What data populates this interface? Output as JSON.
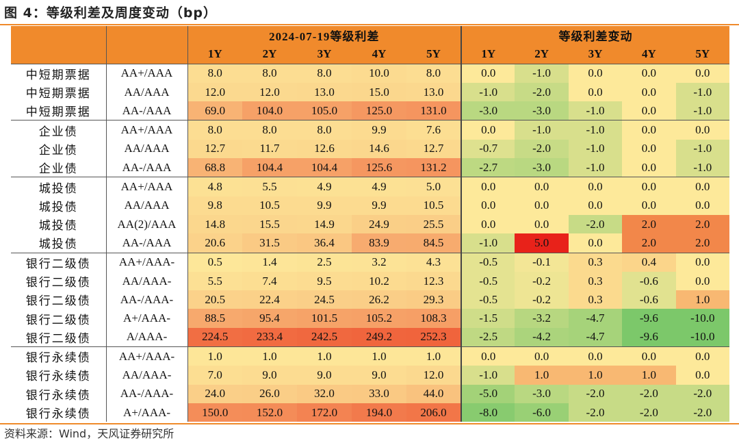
{
  "title": "图 4：等级利差及周度变动（bp）",
  "source": "资料来源：Wind，天风证券研究所",
  "header": {
    "group_left": "2024-07-19等级利差",
    "group_right": "等级利差变动",
    "tenors": [
      "1Y",
      "2Y",
      "3Y",
      "4Y",
      "5Y"
    ]
  },
  "rows": [
    {
      "name": "中短期票据",
      "rating": "AA+/AAA",
      "spread": [
        "8.0",
        "8.0",
        "8.0",
        "10.0",
        "8.0"
      ],
      "change": [
        "0.0",
        "-1.0",
        "0.0",
        "0.0",
        "0.0"
      ]
    },
    {
      "name": "中短期票据",
      "rating": "AA/AAA",
      "spread": [
        "12.0",
        "12.0",
        "13.0",
        "15.0",
        "13.0"
      ],
      "change": [
        "-1.0",
        "-2.0",
        "0.0",
        "0.0",
        "-1.0"
      ]
    },
    {
      "name": "中短期票据",
      "rating": "AA-/AAA",
      "spread": [
        "69.0",
        "104.0",
        "105.0",
        "125.0",
        "131.0"
      ],
      "change": [
        "-3.0",
        "-3.0",
        "-1.0",
        "0.0",
        "-1.0"
      ]
    },
    {
      "name": "企业债",
      "rating": "AA+/AAA",
      "spread": [
        "8.0",
        "8.0",
        "8.0",
        "9.9",
        "7.6"
      ],
      "change": [
        "0.0",
        "-1.0",
        "-1.0",
        "0.0",
        "0.0"
      ]
    },
    {
      "name": "企业债",
      "rating": "AA/AAA",
      "spread": [
        "12.7",
        "11.7",
        "12.6",
        "14.6",
        "12.7"
      ],
      "change": [
        "-0.7",
        "-2.0",
        "-1.0",
        "0.0",
        "-1.0"
      ]
    },
    {
      "name": "企业债",
      "rating": "AA-/AAA",
      "spread": [
        "68.8",
        "104.4",
        "104.4",
        "125.6",
        "131.2"
      ],
      "change": [
        "-2.7",
        "-3.0",
        "-1.0",
        "0.0",
        "-1.0"
      ]
    },
    {
      "name": "城投债",
      "rating": "AA+/AAA",
      "spread": [
        "4.8",
        "5.5",
        "4.9",
        "4.9",
        "5.0"
      ],
      "change": [
        "0.0",
        "0.0",
        "0.0",
        "0.0",
        "0.0"
      ]
    },
    {
      "name": "城投债",
      "rating": "AA/AAA",
      "spread": [
        "9.8",
        "10.5",
        "9.9",
        "9.9",
        "10.5"
      ],
      "change": [
        "0.0",
        "0.0",
        "0.0",
        "0.0",
        "0.0"
      ]
    },
    {
      "name": "城投债",
      "rating": "AA(2)/AAA",
      "spread": [
        "14.8",
        "15.5",
        "14.9",
        "24.9",
        "25.5"
      ],
      "change": [
        "0.0",
        "0.0",
        "-2.0",
        "2.0",
        "2.0"
      ]
    },
    {
      "name": "城投债",
      "rating": "AA-/AAA",
      "spread": [
        "20.6",
        "31.5",
        "36.4",
        "83.9",
        "84.5"
      ],
      "change": [
        "-1.0",
        "5.0",
        "0.0",
        "2.0",
        "2.0"
      ]
    },
    {
      "name": "银行二级债",
      "rating": "AA+/AAA-",
      "spread": [
        "0.5",
        "1.4",
        "2.5",
        "3.2",
        "4.3"
      ],
      "change": [
        "-0.5",
        "-0.1",
        "0.3",
        "0.4",
        "0.0"
      ]
    },
    {
      "name": "银行二级债",
      "rating": "AA/AAA-",
      "spread": [
        "5.5",
        "7.4",
        "9.5",
        "10.2",
        "12.3"
      ],
      "change": [
        "-0.5",
        "-0.2",
        "0.3",
        "-0.6",
        "0.0"
      ]
    },
    {
      "name": "银行二级债",
      "rating": "AA-/AAA-",
      "spread": [
        "20.5",
        "22.4",
        "24.5",
        "26.2",
        "29.3"
      ],
      "change": [
        "-0.5",
        "-0.2",
        "0.3",
        "-0.6",
        "1.0"
      ]
    },
    {
      "name": "银行二级债",
      "rating": "A+/AAA-",
      "spread": [
        "88.5",
        "95.4",
        "101.5",
        "105.2",
        "108.3"
      ],
      "change": [
        "-1.5",
        "-3.2",
        "-4.7",
        "-9.6",
        "-10.0"
      ]
    },
    {
      "name": "银行二级债",
      "rating": "A/AAA-",
      "spread": [
        "224.5",
        "233.4",
        "242.5",
        "249.2",
        "252.3"
      ],
      "change": [
        "-2.5",
        "-4.2",
        "-4.7",
        "-9.6",
        "-10.0"
      ]
    },
    {
      "name": "银行永续债",
      "rating": "AA+/AAA-",
      "spread": [
        "1.0",
        "1.0",
        "1.0",
        "1.0",
        "1.0"
      ],
      "change": [
        "0.0",
        "0.0",
        "0.0",
        "0.0",
        "0.0"
      ]
    },
    {
      "name": "银行永续债",
      "rating": "AA/AAA-",
      "spread": [
        "7.0",
        "9.0",
        "9.0",
        "9.0",
        "12.0"
      ],
      "change": [
        "-1.0",
        "1.0",
        "1.0",
        "1.0",
        "0.0"
      ]
    },
    {
      "name": "银行永续债",
      "rating": "AA-/AAA-",
      "spread": [
        "24.0",
        "26.0",
        "32.0",
        "33.0",
        "44.0"
      ],
      "change": [
        "-5.0",
        "-3.0",
        "-2.0",
        "-2.0",
        "-2.0"
      ]
    },
    {
      "name": "银行永续债",
      "rating": "A+/AAA-",
      "spread": [
        "150.0",
        "152.0",
        "172.0",
        "194.0",
        "206.0"
      ],
      "change": [
        "-8.0",
        "-6.0",
        "-2.0",
        "-2.0",
        "-2.0"
      ]
    }
  ],
  "group_starts": [
    0,
    3,
    6,
    10,
    15
  ],
  "colors": {
    "header_orange": "#f08a2c",
    "rule_orange": "#ef8a2a",
    "spread_low": "#fde99a",
    "spread_high": "#f0643c",
    "change_neg": "#7cc86a",
    "change_zero": "#fde99a",
    "change_pos": "#e8221a"
  }
}
